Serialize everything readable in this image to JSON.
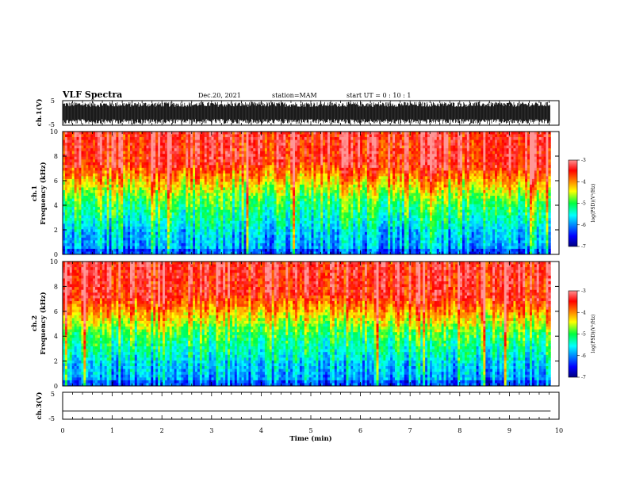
{
  "header": {
    "title": "VLF Spectra",
    "date": "Dec.20, 2021",
    "station": "station=MAM",
    "start": "start  UT =   0 : 10 : 1"
  },
  "chart_data": [
    {
      "type": "line",
      "panel": "ch1-waveform",
      "ylabel": "ch.1(V)",
      "ylim": [
        -5,
        5
      ],
      "y_ticks": [
        "5",
        "-5"
      ],
      "xlim": [
        0,
        10
      ],
      "data_end_min": 9.83,
      "note_values": "dense waveform, amplitude spanning roughly -4.5 to 4.5 V",
      "amplitude_range": [
        -4.5,
        4.5
      ]
    },
    {
      "type": "heatmap",
      "panel": "ch1-spectrogram",
      "ylabel": [
        "ch.1",
        "Frequency  (kHz)"
      ],
      "ylim": [
        0,
        10
      ],
      "y_ticks": [
        "0",
        "2",
        "4",
        "6",
        "8",
        "10"
      ],
      "xlim": [
        0,
        10
      ],
      "data_end_min": 9.83,
      "colorbar": {
        "label": "log(PSD)(V²/Hz)",
        "range": [
          -7,
          -3
        ],
        "ticks": [
          "-3",
          "-4",
          "-5",
          "-6",
          "-7"
        ]
      },
      "green_boundary_khz": [
        [
          0,
          4.6
        ],
        [
          1,
          4.8
        ],
        [
          2,
          4.5
        ],
        [
          3,
          5.0
        ],
        [
          4,
          4.8
        ],
        [
          5,
          5.0
        ],
        [
          6,
          4.7
        ],
        [
          7,
          4.4
        ],
        [
          8,
          4.6
        ],
        [
          9,
          4.5
        ],
        [
          9.83,
          4.4
        ]
      ]
    },
    {
      "type": "heatmap",
      "panel": "ch2-spectrogram",
      "ylabel": [
        "ch.2",
        "Frequency  (kHz)"
      ],
      "ylim": [
        0,
        10
      ],
      "y_ticks": [
        "0",
        "2",
        "4",
        "6",
        "8",
        "10"
      ],
      "xlim": [
        0,
        10
      ],
      "data_end_min": 9.83,
      "colorbar": {
        "label": "log(PSD)(V²/Hz)",
        "range": [
          -7,
          -3
        ],
        "ticks": [
          "-3",
          "-4",
          "-5",
          "-6",
          "-7"
        ]
      },
      "green_boundary_khz": [
        [
          0,
          4.4
        ],
        [
          1,
          4.6
        ],
        [
          2,
          4.3
        ],
        [
          3,
          4.8
        ],
        [
          4,
          4.7
        ],
        [
          5,
          4.9
        ],
        [
          6,
          4.6
        ],
        [
          7,
          4.3
        ],
        [
          8,
          4.5
        ],
        [
          9,
          4.4
        ],
        [
          9.83,
          4.3
        ]
      ]
    },
    {
      "type": "line",
      "panel": "ch3-waveform",
      "ylabel": "ch.3(V)",
      "ylim": [
        -5,
        5
      ],
      "y_ticks": [
        "5",
        "-5"
      ],
      "xlim": [
        0,
        10
      ],
      "x": [
        0,
        9.83
      ],
      "y": [
        -2,
        -2
      ]
    }
  ],
  "xaxis": {
    "label": "Time  (min)",
    "ticks": [
      "0",
      "1",
      "2",
      "3",
      "4",
      "5",
      "6",
      "7",
      "8",
      "9",
      "10"
    ]
  }
}
